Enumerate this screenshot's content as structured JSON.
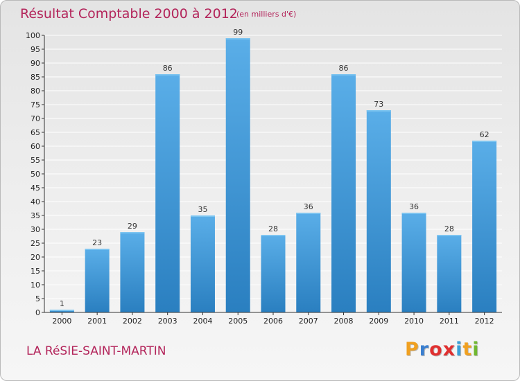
{
  "chart_data": {
    "type": "bar",
    "title": "Résultat Comptable 2000 à 2012",
    "subtitle": "(en milliers d'€)",
    "categories": [
      "2000",
      "2001",
      "2002",
      "2003",
      "2004",
      "2005",
      "2006",
      "2007",
      "2008",
      "2009",
      "2010",
      "2011",
      "2012"
    ],
    "values": [
      1,
      23,
      29,
      86,
      35,
      99,
      28,
      36,
      86,
      73,
      36,
      28,
      62
    ],
    "xlabel": "",
    "ylabel": "",
    "ylim": [
      0,
      100
    ],
    "ytick_step": 5,
    "grid": true,
    "bar_color_top": "#5aaee8",
    "bar_color_bottom": "#2a7fc0"
  },
  "footer": {
    "location": "LA RéSIE-SAINT-MARTIN",
    "logo_text": "Proxiti",
    "logo_colors": [
      "#f0a020",
      "#3a7fd0",
      "#e03030",
      "#e03030",
      "#3a9fd8",
      "#f0a020",
      "#70b830"
    ]
  },
  "colors": {
    "title": "#b3245a",
    "grid": "#ffffff",
    "axis": "#333333"
  }
}
